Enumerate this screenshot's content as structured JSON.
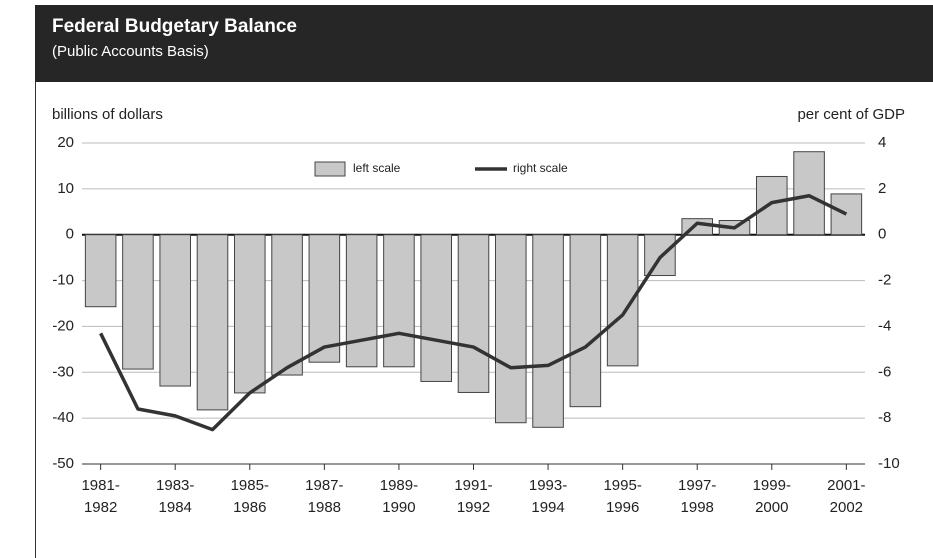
{
  "chart_data": {
    "type": "bar-line",
    "title": "Federal Budgetary Balance",
    "subtitle": "(Public Accounts Basis)",
    "ylabel": "billions of dollars",
    "y2label": "per cent of GDP",
    "categories": [
      "1981-1982",
      null,
      "1983-1984",
      null,
      "1985-1986",
      null,
      "1987-1988",
      null,
      "1989-1990",
      null,
      "1991-1992",
      null,
      "1993-1994",
      null,
      "1995-1996",
      null,
      "1997-1998",
      null,
      "1999-2000",
      null,
      "2001-2002"
    ],
    "series": [
      {
        "name": "left scale",
        "type": "bar",
        "color": "#c8c8c8",
        "values": [
          -15.7,
          -29.3,
          -33,
          -38.2,
          -34.5,
          -30.6,
          -27.8,
          -28.8,
          -28.8,
          -32,
          -34.4,
          -41,
          -42,
          -37.5,
          -28.6,
          -8.9,
          3.5,
          3.1,
          12.7,
          18.1,
          8.9
        ]
      },
      {
        "name": "right scale",
        "type": "line",
        "axis": "y2",
        "color": "#333333",
        "values": [
          -4.3,
          -7.6,
          -7.9,
          -8.5,
          -6.9,
          -5.8,
          -4.9,
          -4.6,
          -4.3,
          -4.6,
          -4.9,
          -5.8,
          -5.7,
          -4.9,
          -3.5,
          -1.0,
          0.5,
          0.3,
          1.4,
          1.7,
          0.9
        ]
      }
    ],
    "ylim": [
      -50,
      20
    ],
    "yticks": [
      -50,
      -40,
      -30,
      -20,
      -10,
      0,
      10,
      20
    ],
    "y2lim": [
      -10,
      4
    ],
    "y2ticks": [
      -10,
      -8,
      -6,
      -4,
      -2,
      0,
      2,
      4
    ],
    "grid": true
  }
}
